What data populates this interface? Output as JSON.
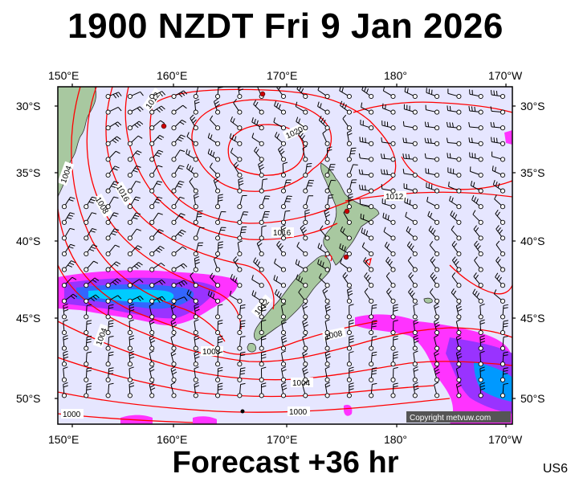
{
  "title": "1900 NZDT Fri 9 Jan 2026",
  "footer": "Forecast +36 hr",
  "region": "US6",
  "copyright": "Copyright metvuw.com",
  "lon_labels": [
    "150°E",
    "160°E",
    "170°E",
    "180°",
    "170°W"
  ],
  "lat_labels": [
    "30°S",
    "35°S",
    "40°S",
    "45°S",
    "50°S"
  ],
  "isobar_labels": [
    "1016",
    "1020",
    "1012",
    "1008",
    "1004",
    "1012",
    "1016",
    "1012",
    "1008",
    "1004",
    "1008",
    "1004",
    "1000",
    "1000",
    "1004"
  ],
  "colors": {
    "sea": "#e6e6ff",
    "isobar": "#ff0000",
    "land": "#a8c8a0",
    "precip_light": "#ff33ff",
    "precip_mid": "#9933ff",
    "precip_heavy": "#0099ff"
  }
}
